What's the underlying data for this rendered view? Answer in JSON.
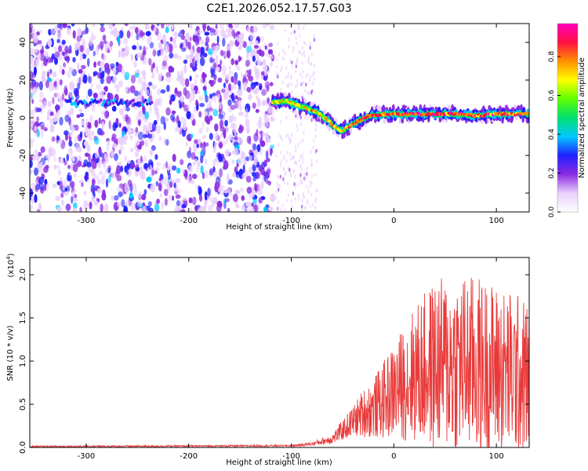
{
  "title": "C2E1.2026.052.17.57.G03",
  "chart_data": [
    {
      "type": "heatmap",
      "description_label": "spectrogram",
      "xlabel": "Height of straight line (km)",
      "ylabel": "Frequency (Hz)",
      "xlim": [
        -355,
        132
      ],
      "ylim": [
        -50,
        50
      ],
      "xticks": [
        -300,
        -200,
        -100,
        0,
        100
      ],
      "yticks": [
        -40,
        -20,
        0,
        20,
        40
      ],
      "colorbar": {
        "label": "Normalized spectral amplitude",
        "range": [
          0.0,
          0.97
        ],
        "ticks": [
          "0.0",
          "0.2",
          "0.4",
          "0.6",
          "0.8"
        ],
        "tick_values": [
          0.0,
          0.2,
          0.4,
          0.6,
          0.8
        ],
        "colors": [
          "#ffffff",
          "#e9cffd",
          "#8a2be2",
          "#2020ff",
          "#00c8ff",
          "#00e070",
          "#60ff00",
          "#ffff00",
          "#ff9000",
          "#ff1040",
          "#ff00c0"
        ]
      },
      "signal_track": {
        "x": [
          -118,
          -105,
          -95,
          -85,
          -75,
          -65,
          -55,
          -50,
          -45,
          -35,
          -25,
          -10,
          0,
          20,
          40,
          60,
          80,
          100,
          120,
          132
        ],
        "y": [
          8,
          9,
          7,
          5,
          3,
          -1,
          -6,
          -7,
          -5,
          -2,
          1,
          2,
          2,
          2,
          2,
          2,
          1,
          2,
          2,
          2
        ]
      },
      "noise_region_x": [
        -355,
        -118
      ]
    },
    {
      "type": "line",
      "xlabel": "Height of straight line (km)",
      "ylabel": "SNR (10 * v/v)",
      "y_multiplier": "(x10",
      "y_multiplier_exp": "4",
      "xlim": [
        -355,
        132
      ],
      "ylim": [
        0.0,
        2.2
      ],
      "xticks": [
        -300,
        -200,
        -100,
        0,
        100
      ],
      "yticks": [
        "0.0",
        "0.5",
        "1.0",
        "1.5",
        "2.0"
      ],
      "ytick_values": [
        0.0,
        0.5,
        1.0,
        1.5,
        2.0
      ],
      "color": "#e83a3a",
      "envelope": {
        "x": [
          -355,
          -100,
          -80,
          -60,
          -50,
          -40,
          -30,
          -20,
          -10,
          0,
          20,
          40,
          60,
          80,
          100,
          120,
          132
        ],
        "y_mean": [
          0.01,
          0.02,
          0.04,
          0.1,
          0.2,
          0.3,
          0.4,
          0.45,
          0.55,
          0.65,
          0.85,
          0.95,
          0.98,
          0.95,
          0.9,
          0.85,
          0.8
        ],
        "y_amp": [
          0.01,
          0.01,
          0.02,
          0.06,
          0.12,
          0.18,
          0.28,
          0.35,
          0.45,
          0.55,
          0.8,
          1.0,
          1.05,
          1.05,
          1.0,
          0.95,
          0.9
        ]
      }
    }
  ]
}
